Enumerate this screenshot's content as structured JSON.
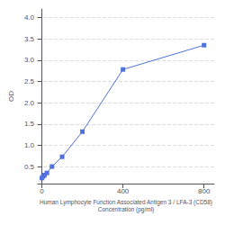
{
  "chart_data": {
    "type": "line",
    "x": [
      0,
      6.25,
      12.5,
      25,
      50,
      100,
      200,
      400,
      800
    ],
    "values": [
      0.23,
      0.27,
      0.3,
      0.35,
      0.5,
      0.73,
      1.32,
      2.78,
      3.35
    ],
    "xlabel": "Human Lymphocyte Function Associated Antigen 3 / LFA-3 (CD58)\nConcentration (pg/ml)",
    "ylabel": "OD",
    "xlim": [
      -20,
      850
    ],
    "xticks": [
      0,
      400,
      800
    ],
    "ylim": [
      0.1,
      4.2
    ],
    "yticks": [
      0.5,
      {
        "value": 1,
        "label": "1.0"
      },
      1.5,
      {
        "value": 2,
        "label": "2.0"
      },
      2.5,
      {
        "value": 3,
        "label": "3.0"
      },
      3.5,
      {
        "value": 4,
        "label": "4.0"
      }
    ],
    "grid": true,
    "marker": "square"
  }
}
